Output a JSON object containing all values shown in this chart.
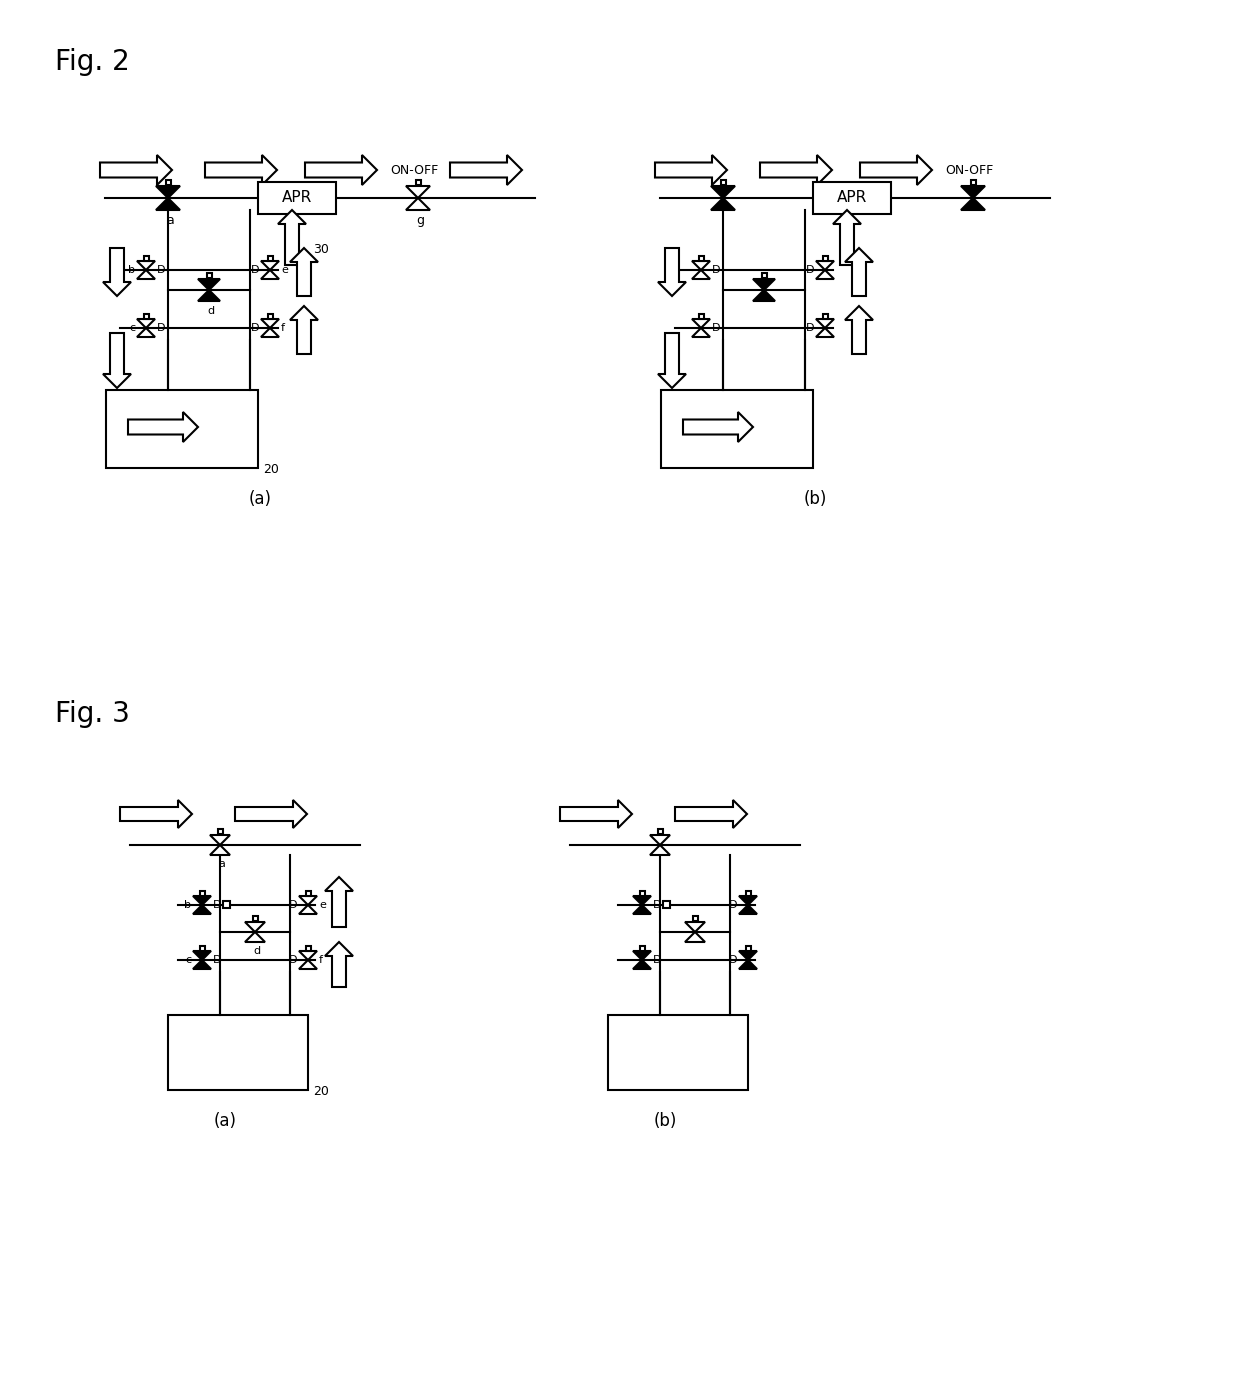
{
  "fig2_title": "Fig. 2",
  "fig3_title": "Fig. 3",
  "sub_a": "(a)",
  "sub_b": "(b)",
  "label_20": "20",
  "label_30": "30",
  "label_on_off": "ON-OFF",
  "label_APR": "APR",
  "bg_color": "#ffffff",
  "line_color": "#000000"
}
